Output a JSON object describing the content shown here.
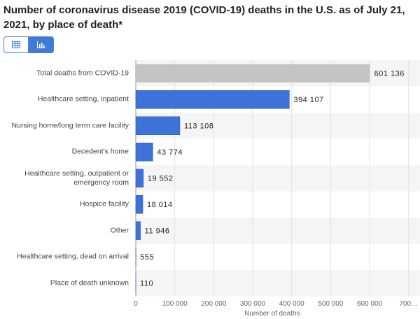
{
  "chart_data": {
    "type": "bar",
    "orientation": "horizontal",
    "title": "Number of coronavirus disease 2019 (COVID-19) deaths in the U.S. as of July 21, 2021, by place of death*",
    "categories": [
      "Total deaths from COVID-19",
      "Healthcare setting, inpatient",
      "Nursing home/long term care facility",
      "Decedent's home",
      "Healthcare setting, outpatient or emergency room",
      "Hospice facility",
      "Other",
      "Healthcare setting, dead on arrival",
      "Place of death unknown"
    ],
    "values": [
      601136,
      394107,
      113108,
      43774,
      19552,
      18014,
      11946,
      555,
      110
    ],
    "value_labels": [
      "601 136",
      "394 107",
      "113 108",
      "43 774",
      "19 552",
      "18 014",
      "11 946",
      "555",
      "110"
    ],
    "colors": [
      "#c4c4c4",
      "#3f72d8",
      "#3f72d8",
      "#3f72d8",
      "#3f72d8",
      "#3f72d8",
      "#3f72d8",
      "#3f72d8",
      "#3f72d8"
    ],
    "xlabel": "Number of deaths",
    "xlim": [
      0,
      700000
    ],
    "xticks": [
      0,
      {
        "value": 100000,
        "label": "100 000"
      },
      {
        "value": 200000,
        "label": "200 000"
      },
      {
        "value": 300000,
        "label": "300 000"
      },
      {
        "value": 400000,
        "label": "400 000"
      },
      {
        "value": 500000,
        "label": "500 000"
      },
      {
        "value": 600000,
        "label": "600 000"
      },
      {
        "value": 700000,
        "label": "700…"
      }
    ],
    "grid": true
  }
}
